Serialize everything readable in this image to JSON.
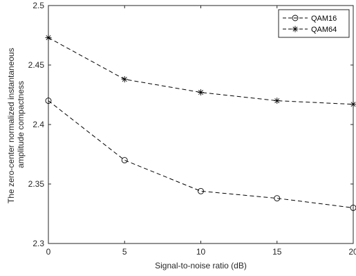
{
  "chart_data": {
    "type": "line",
    "x": [
      0,
      5,
      10,
      15,
      20
    ],
    "xlabel": "Signal-to-noise ratio (dB)",
    "ylabel_lines": [
      "The zero-center normalized instantaneous",
      "amplitude compactness"
    ],
    "xlim": [
      0,
      20
    ],
    "ylim": [
      2.3,
      2.5
    ],
    "xticks": [
      "0",
      "5",
      "10",
      "15",
      "20"
    ],
    "yticks": [
      "2.3",
      "2.35",
      "2.4",
      "2.45",
      "2.5"
    ],
    "grid": false,
    "legend_position": "top-right",
    "series": [
      {
        "name": "QAM16",
        "marker": "circle",
        "line_style": "dashed",
        "color": "#000000",
        "values": [
          2.42,
          2.37,
          2.344,
          2.338,
          2.33
        ]
      },
      {
        "name": "QAM64",
        "marker": "asterisk",
        "line_style": "dashed",
        "color": "#000000",
        "values": [
          2.473,
          2.438,
          2.427,
          2.42,
          2.417
        ]
      }
    ]
  }
}
